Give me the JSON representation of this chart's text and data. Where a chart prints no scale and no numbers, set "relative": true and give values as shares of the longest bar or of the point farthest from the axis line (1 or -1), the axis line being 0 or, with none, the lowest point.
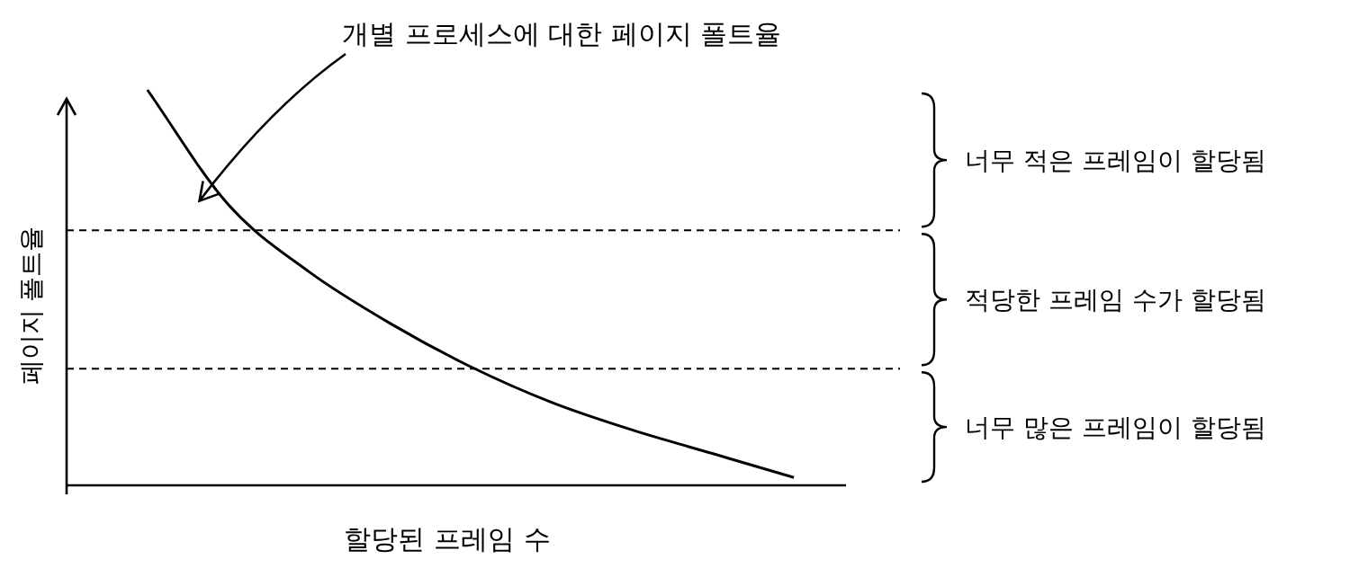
{
  "chart_data": {
    "type": "line",
    "relative": true,
    "categories": [
      null,
      null,
      null,
      null,
      null,
      null,
      null,
      null,
      null
    ],
    "series": [
      {
        "color": "#000000",
        "values": [
          1,
          0.71,
          0.54,
          0.41,
          0.3,
          0.21,
          0.14,
          0.08,
          0.02
        ]
      }
    ],
    "xlabel": "할당된 프레임 수",
    "ylabel": "페이지 폴트율",
    "annotations": [
      "개별 프로세스에 대한 페이지 폴트율",
      "너무 적은 프레임이 할당됨",
      "적당한 프레임 수가 할당됨",
      "너무 많은 프레임이 할당됨"
    ],
    "ref_lines": [
      {
        "axis": "y",
        "value": 0.645,
        "line_style": "dashed"
      },
      {
        "axis": "y",
        "value": 0.295,
        "line_style": "dashed"
      }
    ]
  }
}
